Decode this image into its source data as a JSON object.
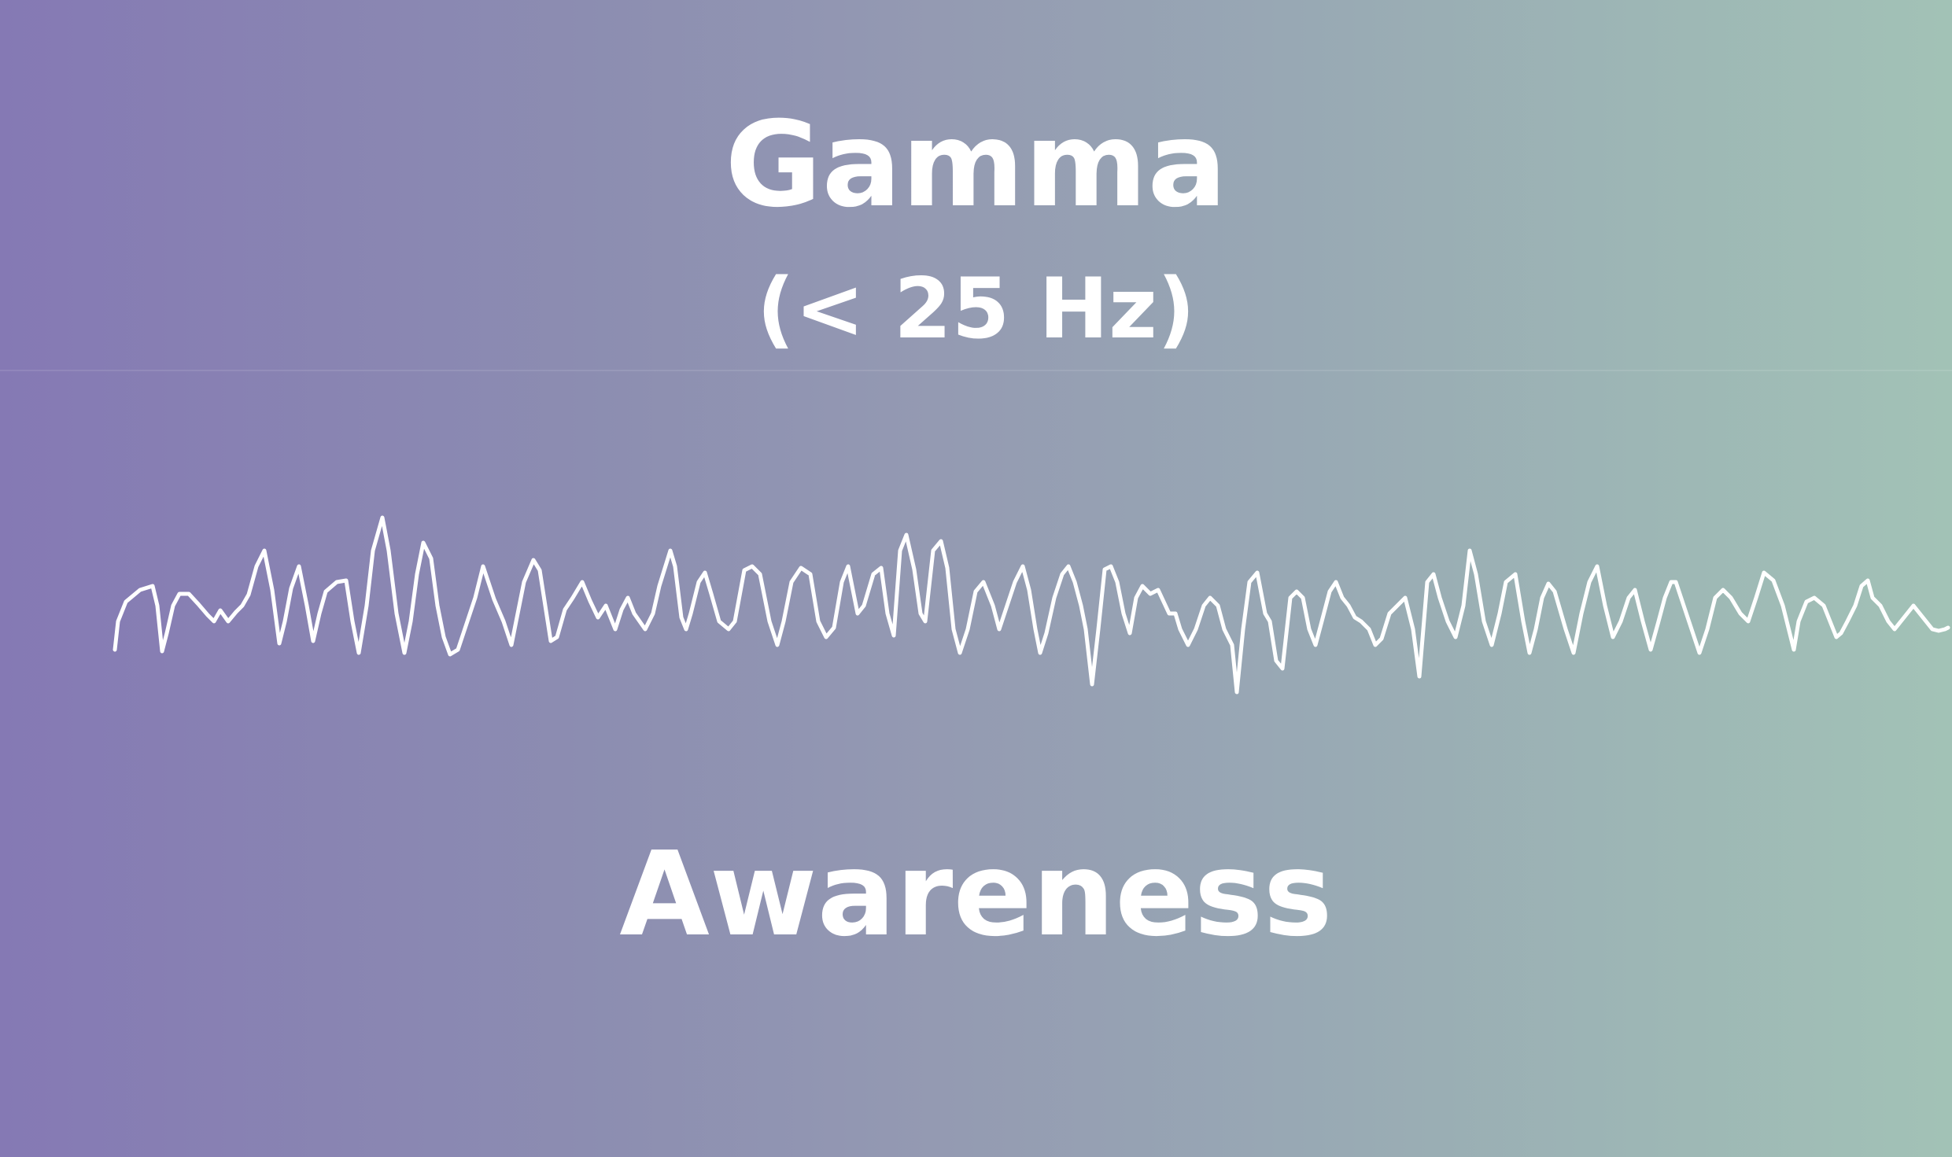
{
  "title": "Gamma",
  "subtitle": "(< 25 Hz)",
  "caption": "Awareness",
  "colors": {
    "gradient_left": "#8579b4",
    "gradient_mid": "#949ab2",
    "gradient_right": "#a2c2b6",
    "text": "#ffffff",
    "wave": "#ffffff"
  },
  "wave_icon": "brainwave-trace"
}
